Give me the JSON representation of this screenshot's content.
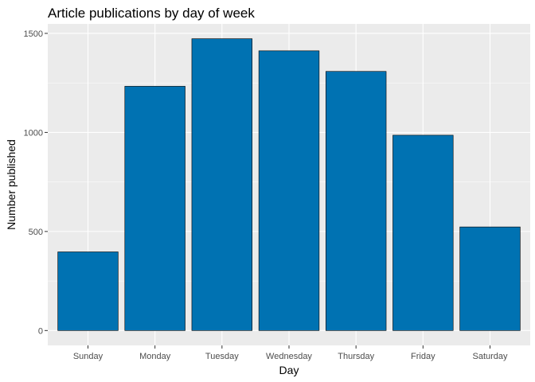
{
  "chart_data": {
    "type": "bar",
    "title": "Article publications by day of week",
    "xlabel": "Day",
    "ylabel": "Number published",
    "categories": [
      "Sunday",
      "Monday",
      "Tuesday",
      "Wednesday",
      "Thursday",
      "Friday",
      "Saturday"
    ],
    "values": [
      397,
      1233,
      1473,
      1412,
      1308,
      986,
      523
    ],
    "ylim": [
      -75,
      1548
    ],
    "yticks": [
      0,
      500,
      1000,
      1500
    ],
    "yticks_minor": [
      250,
      750,
      1250
    ],
    "grid": true,
    "legend": "none",
    "bar_color": "#0072B2",
    "bar_outline_color": "#000000",
    "panel_color": "#EBEBEB"
  }
}
